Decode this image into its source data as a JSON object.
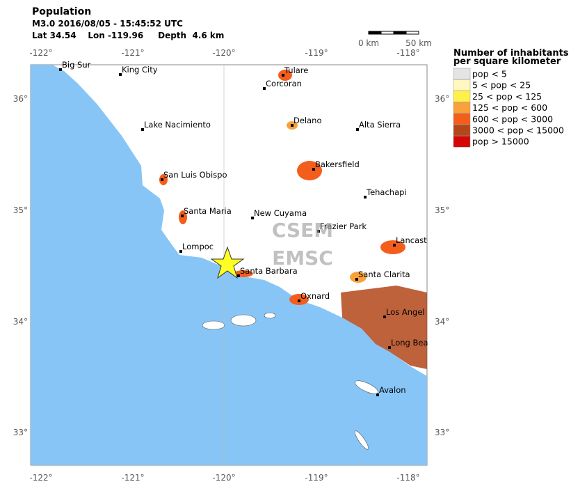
{
  "header": {
    "title": "Population",
    "event": "M3.0  2016/08/05 - 15:45:52 UTC",
    "location": "Lat 34.54    Lon -119.96     Depth  4.6 km"
  },
  "lon_ticks": [
    "-122°",
    "-121°",
    "-120°",
    "-119°",
    "-118°"
  ],
  "lat_ticks": [
    "36°",
    "35°",
    "34°",
    "33°"
  ],
  "scale": [
    "0 km",
    "50 km"
  ],
  "watermark": [
    "CSEM",
    "EMSC"
  ],
  "cities": [
    "Big Sur",
    "King City",
    "Corcoran",
    "Tulare",
    "Lake Nacimiento",
    "Delano",
    "Alta Sierra",
    "Bakersfield",
    "San Luis Obispo",
    "Tehachapi",
    "Santa Maria",
    "New Cuyama",
    "Frazier Park",
    "Lompoc",
    "Lancast",
    "Santa Barbara",
    "Santa Clarita",
    "Oxnard",
    "Los Angel",
    "Long Bea",
    "Avalon"
  ],
  "legend": {
    "title": [
      "Number of inhabitants",
      "per square kilometer"
    ],
    "entries": [
      {
        "label": "pop < 5",
        "color": "#e4e4e4"
      },
      {
        "label": "5 < pop < 25",
        "color": "#fff7bf"
      },
      {
        "label": "25 < pop < 125",
        "color": "#fff04a"
      },
      {
        "label": "125 < pop < 600",
        "color": "#f9a23c"
      },
      {
        "label": "600 < pop < 3000",
        "color": "#f35e1c"
      },
      {
        "label": "3000 < pop < 15000",
        "color": "#b3471a"
      },
      {
        "label": "pop > 15000",
        "color": "#d40606"
      }
    ]
  }
}
